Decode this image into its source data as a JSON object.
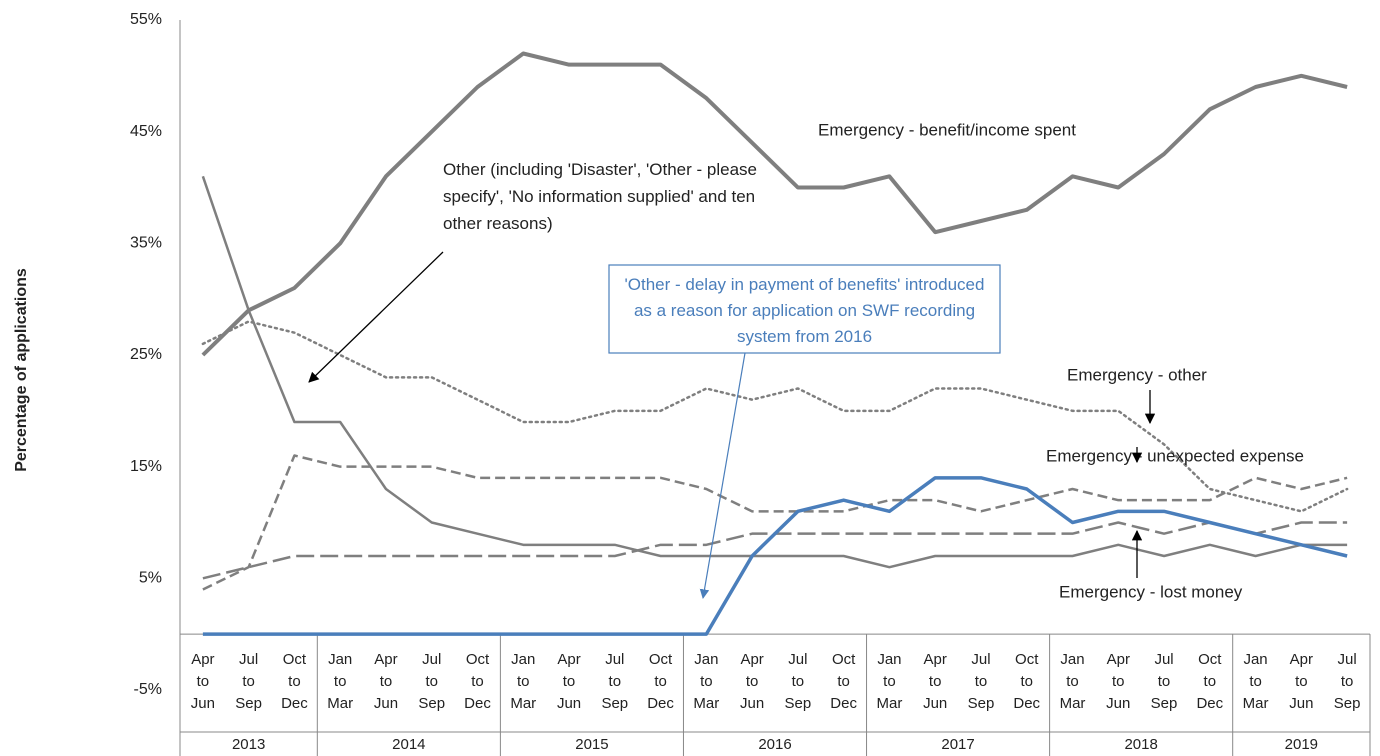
{
  "chart_data": {
    "type": "line",
    "y_label": "Percentage of applications",
    "categories": [
      "Apr to Jun",
      "Jul to Sep",
      "Oct to Dec",
      "Jan to Mar",
      "Apr to Jun",
      "Jul to Sep",
      "Oct to Dec",
      "Jan to Mar",
      "Apr to Jun",
      "Jul to Sep",
      "Oct to Dec",
      "Jan to Mar",
      "Apr to Jun",
      "Jul to Sep",
      "Oct to Dec",
      "Jan to Mar",
      "Apr to Jun",
      "Jul to Sep",
      "Oct to Dec",
      "Jan to Mar",
      "Apr to Jun",
      "Jul to Sep",
      "Oct to Dec",
      "Jan to Mar",
      "Apr to Jun",
      "Jul to Sep"
    ],
    "groups": [
      {
        "name": "2013",
        "span": 3
      },
      {
        "name": "2014",
        "span": 4
      },
      {
        "name": "2015",
        "span": 4
      },
      {
        "name": "2016",
        "span": 4
      },
      {
        "name": "2017",
        "span": 4
      },
      {
        "name": "2018",
        "span": 4
      },
      {
        "name": "2019",
        "span": 3
      }
    ],
    "ylim": [
      -5,
      55
    ],
    "yticks": [
      {
        "value": -5,
        "label": "-5%"
      },
      {
        "value": 5,
        "label": "5%"
      },
      {
        "value": 15,
        "label": "15%"
      },
      {
        "value": 25,
        "label": "25%"
      },
      {
        "value": 35,
        "label": "35%"
      },
      {
        "value": 45,
        "label": "45%"
      },
      {
        "value": 55,
        "label": "55%"
      }
    ],
    "grid": false,
    "series": [
      {
        "name": "Emergency -  benefit/income  spent",
        "color": "#7f7f7f",
        "style": "solid",
        "width": 4,
        "values": [
          25,
          29,
          31,
          35,
          41,
          45,
          49,
          52,
          51,
          51,
          51,
          48,
          44,
          40,
          40,
          41,
          36,
          37,
          38,
          41,
          40,
          43,
          47,
          49,
          50,
          49
        ]
      },
      {
        "name": "Other (including 'Disaster', 'Other - please specify', 'No information supplied' and ten other reasons)",
        "color": "#7f7f7f",
        "style": "solid",
        "width": 2.5,
        "values": [
          41,
          29,
          19,
          19,
          13,
          10,
          9,
          8,
          8,
          8,
          7,
          7,
          7,
          7,
          7,
          6,
          7,
          7,
          7,
          7,
          8,
          7,
          8,
          7,
          8,
          8
        ]
      },
      {
        "name": "Emergency -  other",
        "color": "#7f7f7f",
        "style": "dotted",
        "width": 2.5,
        "values": [
          26,
          28,
          27,
          25,
          23,
          23,
          21,
          19,
          19,
          20,
          20,
          22,
          21,
          22,
          20,
          20,
          22,
          22,
          21,
          20,
          20,
          17,
          13,
          12,
          11,
          13
        ]
      },
      {
        "name": "Emergency - unexpected expense",
        "color": "#7f7f7f",
        "style": "dashed",
        "width": 2.5,
        "values": [
          4,
          6,
          16,
          15,
          15,
          15,
          14,
          14,
          14,
          14,
          14,
          13,
          11,
          11,
          11,
          12,
          12,
          11,
          12,
          13,
          12,
          12,
          12,
          14,
          13,
          14
        ]
      },
      {
        "name": "Emergency -  lost money",
        "color": "#7f7f7f",
        "style": "longdash",
        "width": 2.5,
        "values": [
          5,
          6,
          7,
          7,
          7,
          7,
          7,
          7,
          7,
          7,
          8,
          8,
          9,
          9,
          9,
          9,
          9,
          9,
          9,
          9,
          10,
          9,
          10,
          9,
          10,
          10
        ]
      },
      {
        "color": "#4a7ebb",
        "style": "solid",
        "width": 3.5,
        "values": [
          0,
          0,
          0,
          0,
          0,
          0,
          0,
          0,
          0,
          0,
          0,
          0,
          7,
          11,
          12,
          11,
          14,
          14,
          13,
          10,
          11,
          11,
          10,
          9,
          8,
          7
        ]
      }
    ],
    "annotation": "'Other - delay in payment of benefits' introduced as a reason for application on SWF recording system from 2016"
  }
}
